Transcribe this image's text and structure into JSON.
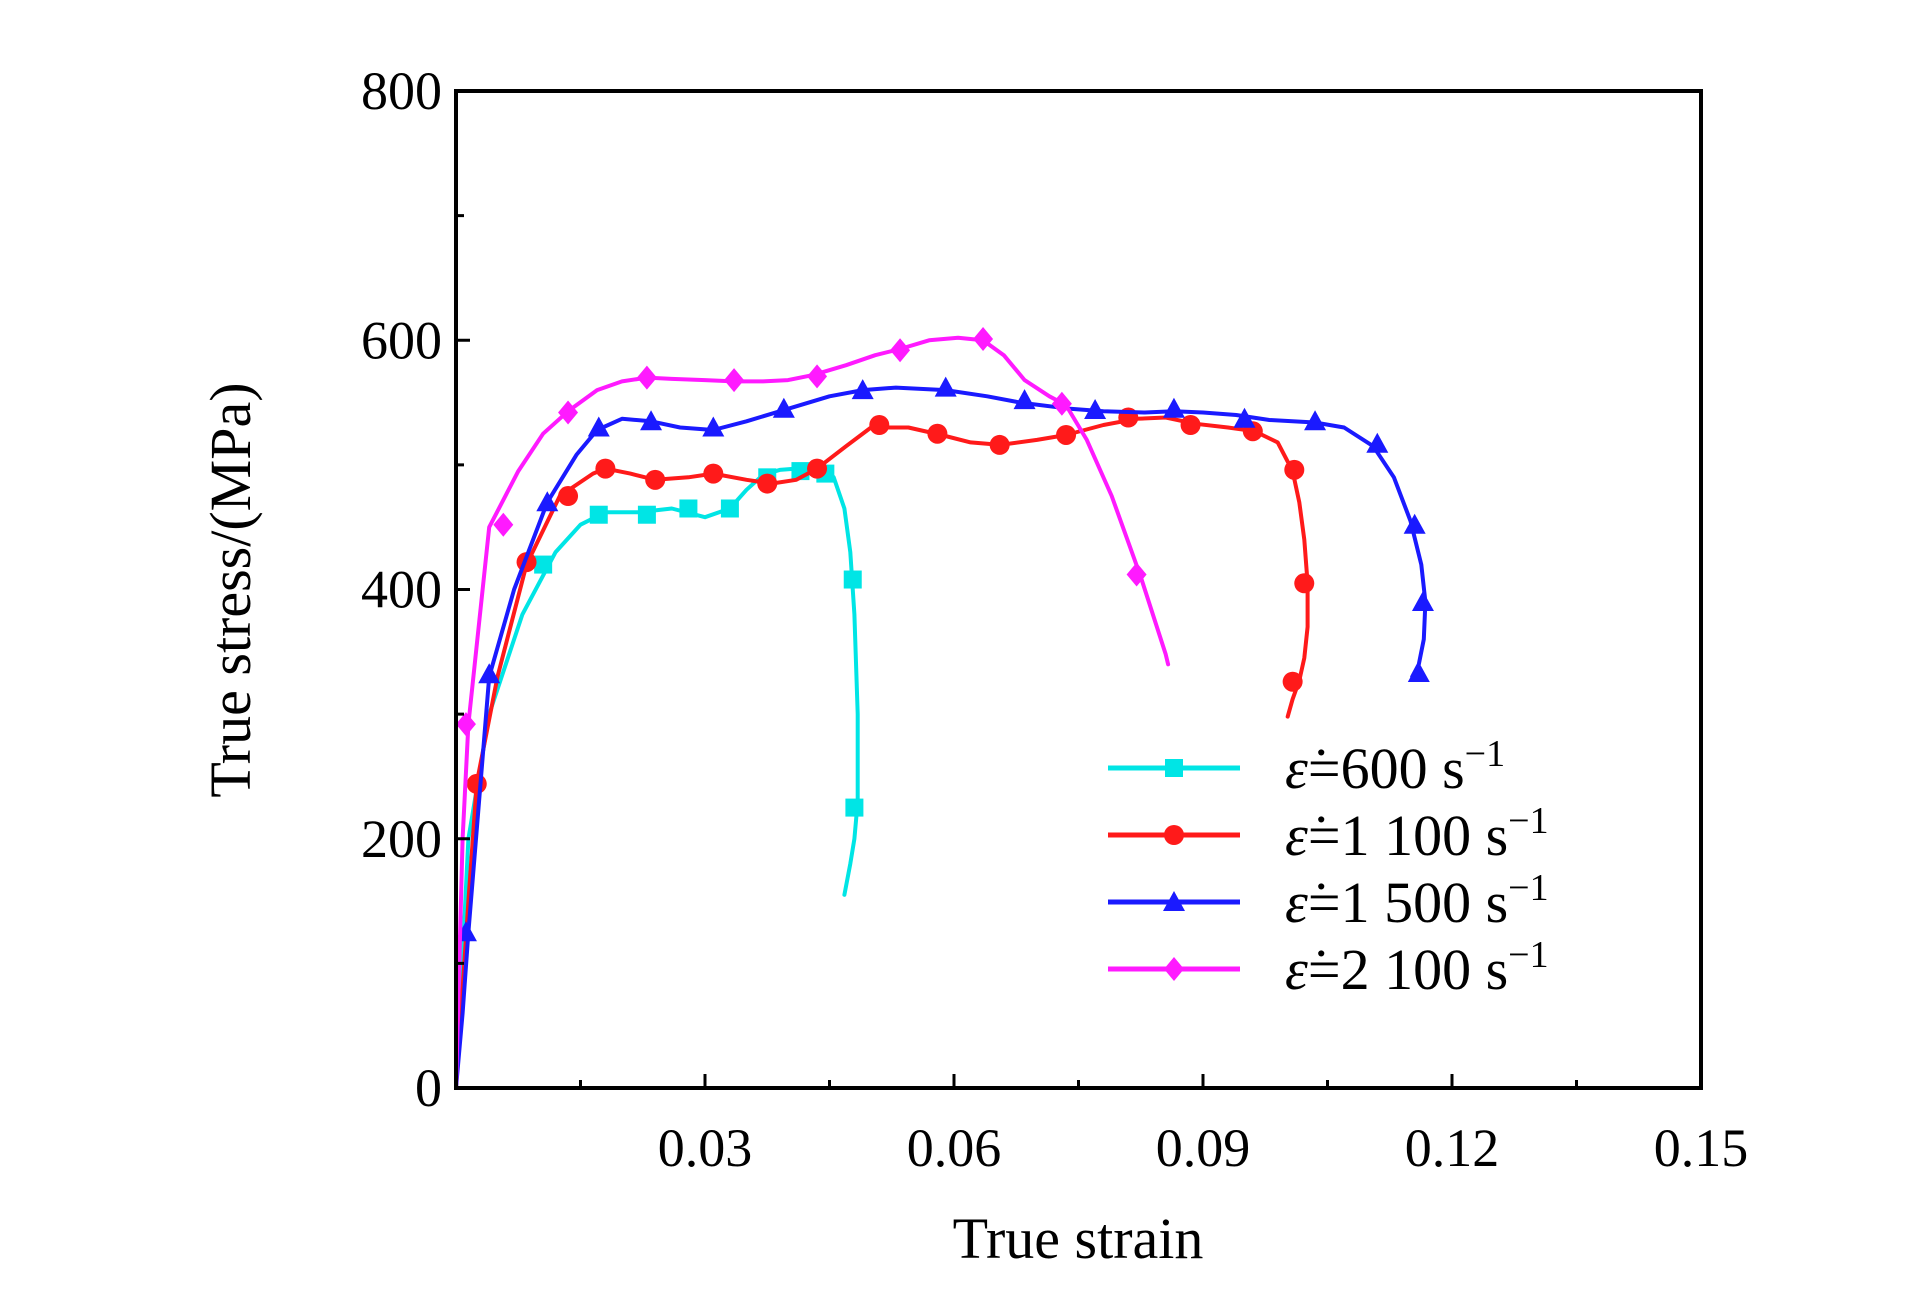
{
  "chart_data": {
    "type": "line",
    "xlabel": "True strain",
    "ylabel": "True stress/(MPa)",
    "xlim": [
      0,
      0.15
    ],
    "ylim": [
      0,
      800
    ],
    "x_tick_labels": [
      "0.03",
      "0.06",
      "0.09",
      "0.12",
      "0.15"
    ],
    "x_tick_values": [
      0.03,
      0.06,
      0.09,
      0.12,
      0.15
    ],
    "y_tick_labels": [
      "0",
      "200",
      "400",
      "600",
      "800"
    ],
    "y_tick_values": [
      0,
      200,
      400,
      600,
      800
    ],
    "legend_position": "lower-right",
    "series": [
      {
        "name": "ε̇=600 s⁻¹",
        "legend_rate": "600",
        "color": "#00e5e5",
        "marker": "square",
        "x": [
          0,
          0.0015,
          0.004,
          0.008,
          0.012,
          0.015,
          0.018,
          0.022,
          0.026,
          0.03,
          0.033,
          0.035,
          0.037,
          0.039,
          0.041,
          0.043,
          0.0445,
          0.0455,
          0.0468,
          0.0475,
          0.048,
          0.0484,
          0.0484,
          0.048,
          0.0475,
          0.0468
        ],
        "y": [
          0,
          200,
          300,
          380,
          430,
          452,
          462,
          462,
          465,
          458,
          465,
          480,
          492,
          496,
          497,
          498,
          497,
          490,
          465,
          430,
          380,
          300,
          230,
          200,
          180,
          155
        ],
        "marker_x": [
          0.0105,
          0.0172,
          0.023,
          0.028,
          0.033,
          0.0375,
          0.0415,
          0.0445,
          0.0478,
          0.048
        ],
        "marker_y": [
          420,
          460,
          460,
          465,
          465,
          490,
          495,
          493,
          408,
          225
        ]
      },
      {
        "name": "ε̇=1 100 s⁻¹",
        "legend_rate": "1 100",
        "color": "#ff1a1a",
        "marker": "circle",
        "x": [
          0,
          0.0015,
          0.0025,
          0.005,
          0.0085,
          0.0125,
          0.0165,
          0.018,
          0.021,
          0.024,
          0.028,
          0.031,
          0.035,
          0.038,
          0.041,
          0.0435,
          0.047,
          0.05,
          0.0545,
          0.0585,
          0.062,
          0.0656,
          0.07,
          0.0735,
          0.078,
          0.082,
          0.0855,
          0.089,
          0.093,
          0.0962,
          0.099,
          0.1008,
          0.1016,
          0.1022,
          0.1026,
          0.1026,
          0.1022,
          0.1016,
          0.1008,
          0.1002
        ],
        "y": [
          0,
          150,
          245,
          330,
          420,
          475,
          493,
          497,
          493,
          488,
          490,
          493,
          488,
          485,
          488,
          497,
          515,
          530,
          530,
          524,
          518,
          516,
          520,
          524,
          532,
          537,
          538,
          533,
          530,
          527,
          518,
          495,
          470,
          440,
          405,
          370,
          345,
          327,
          312,
          298
        ],
        "marker_x": [
          0.0025,
          0.0085,
          0.0135,
          0.018,
          0.024,
          0.031,
          0.0375,
          0.0435,
          0.051,
          0.058,
          0.0655,
          0.0735,
          0.081,
          0.0885,
          0.096,
          0.101,
          0.1022,
          0.1008
        ],
        "marker_y": [
          244,
          422,
          475,
          497,
          488,
          493,
          485,
          497,
          532,
          525,
          516,
          524,
          538,
          532,
          527,
          496,
          405,
          326
        ]
      },
      {
        "name": "ε̇=1 500 s⁻¹",
        "legend_rate": "1 500",
        "color": "#1a1aff",
        "marker": "triangle",
        "x": [
          0,
          0.0008,
          0.0015,
          0.004,
          0.007,
          0.011,
          0.0145,
          0.017,
          0.02,
          0.0235,
          0.027,
          0.031,
          0.035,
          0.04,
          0.045,
          0.049,
          0.053,
          0.059,
          0.064,
          0.068,
          0.074,
          0.078,
          0.083,
          0.0865,
          0.09,
          0.094,
          0.098,
          0.1035,
          0.107,
          0.1105,
          0.113,
          0.115,
          0.1163,
          0.1168,
          0.1166,
          0.116,
          0.1152
        ],
        "y": [
          0,
          60,
          125,
          330,
          400,
          470,
          508,
          528,
          537,
          535,
          530,
          528,
          535,
          545,
          555,
          560,
          562,
          560,
          555,
          550,
          545,
          543,
          542,
          543,
          542,
          540,
          536,
          534,
          530,
          515,
          490,
          455,
          420,
          390,
          360,
          340,
          330
        ],
        "marker_x": [
          0.0012,
          0.004,
          0.011,
          0.0172,
          0.0235,
          0.031,
          0.0395,
          0.049,
          0.059,
          0.0685,
          0.077,
          0.0865,
          0.095,
          0.1035,
          0.111,
          0.1155,
          0.1165,
          0.116
        ],
        "marker_y": [
          125,
          332,
          470,
          530,
          535,
          530,
          545,
          560,
          562,
          552,
          544,
          545,
          537,
          535,
          517,
          452,
          390,
          333
        ]
      },
      {
        "name": "ε̇=2 100 s⁻¹",
        "legend_rate": "2 100",
        "color": "#ff1aff",
        "marker": "diamond",
        "x": [
          0,
          0.0008,
          0.0015,
          0.004,
          0.0075,
          0.0105,
          0.0135,
          0.017,
          0.02,
          0.023,
          0.026,
          0.03,
          0.0335,
          0.037,
          0.04,
          0.043,
          0.047,
          0.0505,
          0.0535,
          0.057,
          0.0605,
          0.0635,
          0.066,
          0.0685,
          0.0715,
          0.0735,
          0.076,
          0.079,
          0.0825,
          0.0855,
          0.0858
        ],
        "y": [
          0,
          200,
          292,
          450,
          495,
          525,
          543,
          560,
          567,
          570,
          569,
          568,
          567,
          567,
          568,
          572,
          580,
          588,
          593,
          600,
          602,
          600,
          588,
          568,
          555,
          548,
          520,
          475,
          410,
          348,
          340
        ],
        "marker_x": [
          0.0012,
          0.0057,
          0.0135,
          0.023,
          0.0335,
          0.0435,
          0.0535,
          0.0635,
          0.073,
          0.082
        ],
        "marker_y": [
          292,
          452,
          542,
          570,
          568,
          571,
          592,
          601,
          549,
          412
        ]
      }
    ]
  }
}
